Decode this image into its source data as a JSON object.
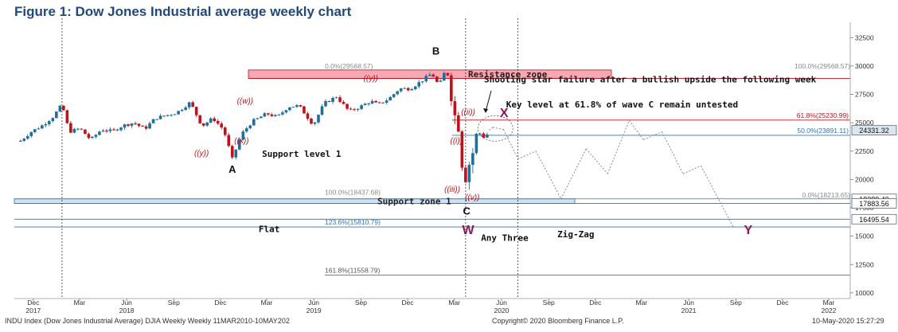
{
  "figure_title": "Figure 1: Dow Jones Industrial average weekly chart",
  "footer": {
    "left": "INDU Index (Dow Jones Industrial Average) DJIA Weekly  Weekly 11MAR2010-10MAY202",
    "center": "Copyright© 2020 Bloomberg Finance L.P.",
    "right": "10-May-2020 15:27:29"
  },
  "colors": {
    "up_candle": "#1f6f9c",
    "down_candle": "#c0111b",
    "wave_label": "#c0111b",
    "wx_label": "#8b1a5a",
    "resistance_fill": "#f6a8b4",
    "support_fill": "#cfe3f6",
    "level_line": "#2e75b6",
    "projection": "#8c8c8c"
  },
  "chart_data": {
    "type": "line",
    "subtype": "candlestick",
    "ylim": [
      9500,
      33500
    ],
    "y_ticks": [
      "32500",
      "30000",
      "27500",
      "25000",
      "22500",
      "20000",
      "17500",
      "15000",
      "12500",
      "10000"
    ],
    "x_months": [
      {
        "m": "Dec",
        "y": "2017",
        "d": "2017-12-01"
      },
      {
        "m": "Mar",
        "y": "",
        "d": "2018-03-01"
      },
      {
        "m": "Jun",
        "y": "2018",
        "d": "2018-06-01"
      },
      {
        "m": "Sep",
        "y": "",
        "d": "2018-09-01"
      },
      {
        "m": "Dec",
        "y": "",
        "d": "2018-12-01"
      },
      {
        "m": "Mar",
        "y": "",
        "d": "2019-03-01"
      },
      {
        "m": "Jun",
        "y": "2019",
        "d": "2019-06-01"
      },
      {
        "m": "Sep",
        "y": "",
        "d": "2019-09-01"
      },
      {
        "m": "Dec",
        "y": "",
        "d": "2019-12-01"
      },
      {
        "m": "Mar",
        "y": "",
        "d": "2020-03-01"
      },
      {
        "m": "Jun",
        "y": "2020",
        "d": "2020-06-01"
      },
      {
        "m": "Sep",
        "y": "",
        "d": "2020-09-01"
      },
      {
        "m": "Dec",
        "y": "",
        "d": "2020-12-01"
      },
      {
        "m": "Mar",
        "y": "",
        "d": "2021-03-01"
      },
      {
        "m": "Jun",
        "y": "2021",
        "d": "2021-06-01"
      },
      {
        "m": "Sep",
        "y": "",
        "d": "2021-09-01"
      },
      {
        "m": "Dec",
        "y": "",
        "d": "2021-12-01"
      },
      {
        "m": "Mar",
        "y": "2022",
        "d": "2022-03-01"
      }
    ],
    "price_path": [
      [
        "2017-11-06",
        23400
      ],
      [
        "2017-11-27",
        24200
      ],
      [
        "2017-12-18",
        24750
      ],
      [
        "2018-01-08",
        25500
      ],
      [
        "2018-01-26",
        26600
      ],
      [
        "2018-02-09",
        24200
      ],
      [
        "2018-03-02",
        24500
      ],
      [
        "2018-03-23",
        23500
      ],
      [
        "2018-04-13",
        24400
      ],
      [
        "2018-05-04",
        24250
      ],
      [
        "2018-05-25",
        24750
      ],
      [
        "2018-06-15",
        25000
      ],
      [
        "2018-07-06",
        24450
      ],
      [
        "2018-07-27",
        25400
      ],
      [
        "2018-08-17",
        25650
      ],
      [
        "2018-09-07",
        25900
      ],
      [
        "2018-10-03",
        26800
      ],
      [
        "2018-10-26",
        24700
      ],
      [
        "2018-11-16",
        25400
      ],
      [
        "2018-12-07",
        24400
      ],
      [
        "2018-12-24",
        21800
      ],
      [
        "2019-01-11",
        24000
      ],
      [
        "2019-02-01",
        25100
      ],
      [
        "2019-03-01",
        25800
      ],
      [
        "2019-03-22",
        25500
      ],
      [
        "2019-04-12",
        26400
      ],
      [
        "2019-05-03",
        26500
      ],
      [
        "2019-05-31",
        24800
      ],
      [
        "2019-06-21",
        26700
      ],
      [
        "2019-07-15",
        27300
      ],
      [
        "2019-08-09",
        26000
      ],
      [
        "2019-08-30",
        26400
      ],
      [
        "2019-09-20",
        26900
      ],
      [
        "2019-10-04",
        26600
      ],
      [
        "2019-10-25",
        27100
      ],
      [
        "2019-11-15",
        28000
      ],
      [
        "2019-12-06",
        28000
      ],
      [
        "2019-12-27",
        28650
      ],
      [
        "2020-01-17",
        29350
      ],
      [
        "2020-01-31",
        28250
      ],
      [
        "2020-02-12",
        29550
      ],
      [
        "2020-02-21",
        29000
      ],
      [
        "2020-02-28",
        25400
      ],
      [
        "2020-03-06",
        25900
      ],
      [
        "2020-03-13",
        23200
      ],
      [
        "2020-03-20",
        19200
      ],
      [
        "2020-03-27",
        21650
      ],
      [
        "2020-04-03",
        21050
      ],
      [
        "2020-04-09",
        23700
      ],
      [
        "2020-04-17",
        24250
      ],
      [
        "2020-04-24",
        23800
      ],
      [
        "2020-05-01",
        23700
      ],
      [
        "2020-05-08",
        24331
      ]
    ],
    "projection_path": [
      [
        "2020-05-15",
        24600
      ],
      [
        "2020-06-05",
        24400
      ],
      [
        "2020-07-03",
        21800
      ],
      [
        "2020-08-07",
        22500
      ],
      [
        "2020-09-25",
        18300
      ],
      [
        "2020-11-13",
        22700
      ],
      [
        "2020-12-25",
        20500
      ],
      [
        "2021-02-05",
        25200
      ],
      [
        "2021-03-05",
        23500
      ],
      [
        "2021-04-10",
        24200
      ],
      [
        "2021-05-21",
        20500
      ],
      [
        "2021-06-25",
        21200
      ],
      [
        "2021-08-27",
        15800
      ]
    ],
    "fib_levels": [
      {
        "label": "0.0%(29568.57)",
        "value": 29568.57
      },
      {
        "label": "100.0%(29568.57)",
        "value": 29568.57
      },
      {
        "label": "61.8%(25230.99)",
        "value": 25230.99
      },
      {
        "label": "50.0%(23891.11)",
        "value": 23891.11
      },
      {
        "label": "100.0%(18437.68)",
        "value": 18437.68
      },
      {
        "label": "0.0%(18213.65)",
        "value": 18213.65
      },
      {
        "label": "123.6%(15810.79)",
        "value": 15810.79
      },
      {
        "label": "161.8%(11558.79)",
        "value": 11558.79
      }
    ],
    "price_tags": [
      {
        "label": "24331.32",
        "value": 24331.32,
        "kind": "last"
      },
      {
        "label": "18289.40",
        "value": 18289.4,
        "kind": "level"
      },
      {
        "label": "17883.56",
        "value": 17883.56,
        "kind": "level"
      },
      {
        "label": "16495.54",
        "value": 16495.54,
        "kind": "level"
      }
    ],
    "resistance_zone": {
      "label": "Resistance zone",
      "low": 28900,
      "high": 29650
    },
    "support_zone": {
      "label": "Support zone 1",
      "low": 17880,
      "high": 18290
    },
    "wave_labels": [
      {
        "text": "((w))",
        "d": "2019-01-18",
        "v": 26700
      },
      {
        "text": "((x))",
        "d": "2019-01-11",
        "v": 23200
      },
      {
        "text": "((y))",
        "d": "2018-10-25",
        "v": 22100
      },
      {
        "text": "((y))",
        "d": "2019-09-20",
        "v": 28700
      },
      {
        "text": "((ii))",
        "d": "2020-03-28",
        "v": 25700
      },
      {
        "text": "((i))",
        "d": "2020-03-05",
        "v": 23200
      },
      {
        "text": "((iii))",
        "d": "2020-02-26",
        "v": 18900
      },
      {
        "text": "((v))",
        "d": "2020-04-05",
        "v": 18200
      }
    ],
    "pivot_labels": [
      {
        "text": "A",
        "d": "2018-12-24",
        "v": 20600
      },
      {
        "text": "B",
        "d": "2020-01-25",
        "v": 31000
      },
      {
        "text": "C",
        "d": "2020-03-25",
        "v": 16900
      }
    ],
    "wx_labels": [
      {
        "text": "W",
        "d": "2020-03-28",
        "v": 15200
      },
      {
        "text": "X",
        "d": "2020-06-06",
        "v": 25500
      },
      {
        "text": "Y",
        "d": "2021-09-25",
        "v": 15200
      }
    ],
    "annotations": [
      {
        "text": "Shooting star failure after a bullish upside the following week",
        "d": "2020-04-28",
        "v": 28550
      },
      {
        "text": "Key level at 61.8% of wave C remain untested",
        "d": "2020-06-10",
        "v": 26350
      },
      {
        "text": "Support level 1",
        "d": "2019-02-20",
        "v": 22000
      },
      {
        "text": "Any Three",
        "d": "2020-04-22",
        "v": 14600
      },
      {
        "text": "Flat",
        "d": "2019-03-06",
        "v": 15350
      },
      {
        "text": "Zig-Zag",
        "d": "2020-09-18",
        "v": 14900
      }
    ],
    "vertical_markers": [
      "2018-01-26",
      "2020-03-23",
      "2020-07-03"
    ]
  }
}
